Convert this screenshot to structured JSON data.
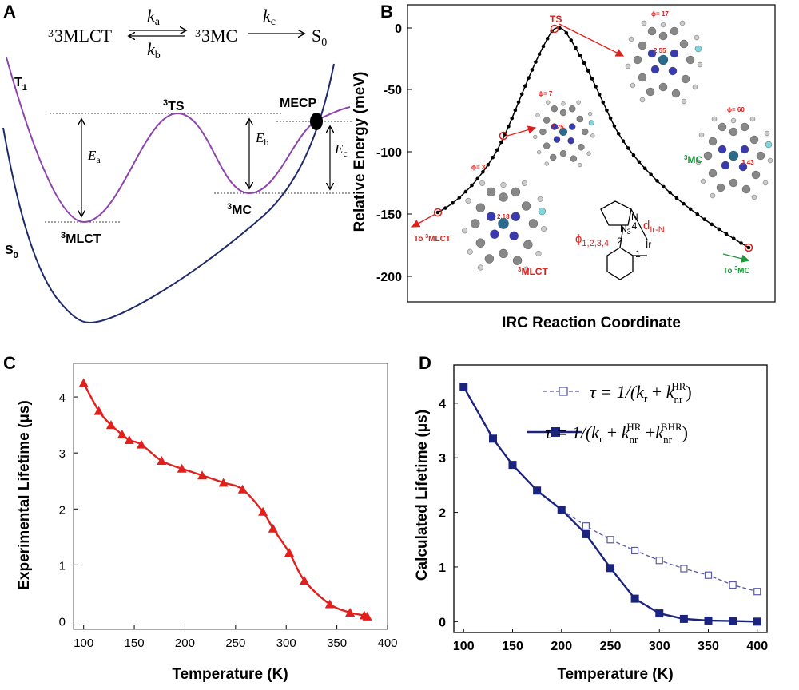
{
  "panel_labels": [
    "A",
    "B",
    "C",
    "D"
  ],
  "panelA": {
    "scheme": {
      "left": "3MLCT",
      "ka": "k",
      "ka_sub": "a",
      "kb": "k",
      "kb_sub": "b",
      "middle": "3MC",
      "kc": "k",
      "kc_sub": "c",
      "right": "S",
      "right_sub": "0"
    },
    "labels": {
      "t1": "T",
      "t1_sub": "1",
      "s0": "S",
      "s0_sub": "0",
      "ts": "TS",
      "mlct": "MLCT",
      "mc": "MC",
      "mecp": "MECP",
      "sup3": "3",
      "ea": "E",
      "ea_sub": "a",
      "eb": "E",
      "eb_sub": "b",
      "ec": "E",
      "ec_sub": "c"
    },
    "colors": {
      "t1_curve": "#8e44ad",
      "s0_curve": "#1f2a6b"
    }
  },
  "panelB": {
    "ylabel": "Relative Energy (meV)",
    "xlabel": "IRC Reaction Coordinate",
    "yticks": [
      "0",
      "-50",
      "-100",
      "-150",
      "-200"
    ],
    "labels": {
      "ts": "TS",
      "to_mlct": "To ",
      "to_mlct_b": "MLCT",
      "to_mc": "To ",
      "to_mc_b": "MC",
      "mlct": "MLCT",
      "mc": "MC",
      "sup3": "3",
      "phi17": "ϕ= 17",
      "phi7": "ϕ= 7",
      "phi3": "ϕ= 3",
      "phi60": "ϕ= 60",
      "d255": "2.55",
      "d225": "2.25",
      "d218": "2.18",
      "d343": "3.43",
      "dIrN": "d",
      "dIrN_sub": "Ir-N",
      "phi1234": "ϕ",
      "phi1234_sub": "1,2,3,4",
      "n": "N",
      "n3": "3",
      "n4": "4",
      "ir": "Ir",
      "c1": "1",
      "c2": "2"
    }
  },
  "chart_data": [
    {
      "type": "line",
      "panel": "C",
      "xlabel": "Temperature (K)",
      "ylabel": "Experimental Lifetime (μs)",
      "xlim": [
        90,
        400
      ],
      "ylim": [
        -0.15,
        4.6
      ],
      "xticks": [
        100,
        150,
        200,
        250,
        300,
        350,
        400
      ],
      "yticks": [
        0,
        1,
        2,
        3,
        4
      ],
      "series": [
        {
          "color": "#e0201c",
          "marker": "triangle",
          "x": [
            100,
            115,
            127,
            138,
            145,
            157,
            177,
            197,
            217,
            238,
            257,
            277,
            287,
            303,
            318,
            343,
            363,
            377,
            380
          ],
          "y": [
            4.25,
            3.75,
            3.5,
            3.33,
            3.23,
            3.15,
            2.86,
            2.72,
            2.6,
            2.47,
            2.35,
            1.95,
            1.65,
            1.22,
            0.72,
            0.3,
            0.15,
            0.1,
            0.08
          ]
        }
      ]
    },
    {
      "type": "line",
      "panel": "D",
      "xlabel": "Temperature (K)",
      "ylabel": "Calculated Lifetime (μs)",
      "xlim": [
        90,
        410
      ],
      "ylim": [
        -0.2,
        4.7
      ],
      "xticks": [
        100,
        150,
        200,
        250,
        300,
        350,
        400
      ],
      "yticks": [
        0,
        1,
        2,
        3,
        4
      ],
      "series": [
        {
          "name": "τ = 1/(k_r + k_nr^HR)",
          "color": "#5a5aa8",
          "style": "dashed-open-square",
          "x": [
            200,
            225,
            250,
            275,
            300,
            325,
            350,
            375,
            400
          ],
          "y": [
            2.05,
            1.75,
            1.5,
            1.3,
            1.12,
            0.97,
            0.85,
            0.67,
            0.55
          ]
        },
        {
          "name": "τ = 1/(k_r + k_nr^HR + k_nr^BHR)",
          "color": "#1a237e",
          "style": "solid-filled-square",
          "x": [
            100,
            130,
            150,
            175,
            200,
            225,
            250,
            275,
            300,
            325,
            350,
            375,
            400
          ],
          "y": [
            4.3,
            3.35,
            2.87,
            2.4,
            2.05,
            1.6,
            0.98,
            0.42,
            0.15,
            0.05,
            0.02,
            0.01,
            0.0
          ]
        }
      ],
      "legend": [
        {
          "tau": "τ = 1/(",
          "k": "k",
          "r": "r",
          "plus": " + ",
          "knr": "k",
          "nr": "nr",
          "hr": "HR",
          "close": ")"
        },
        {
          "tau": "τ = 1/(",
          "k": "k",
          "r": "r",
          "plus": " + ",
          "knr": "k",
          "nr": "nr",
          "hr": "HR",
          "plus2": " +",
          "knr2": "k",
          "nr2": "nr",
          "bhr": "BHR",
          "close": ")"
        }
      ]
    }
  ]
}
